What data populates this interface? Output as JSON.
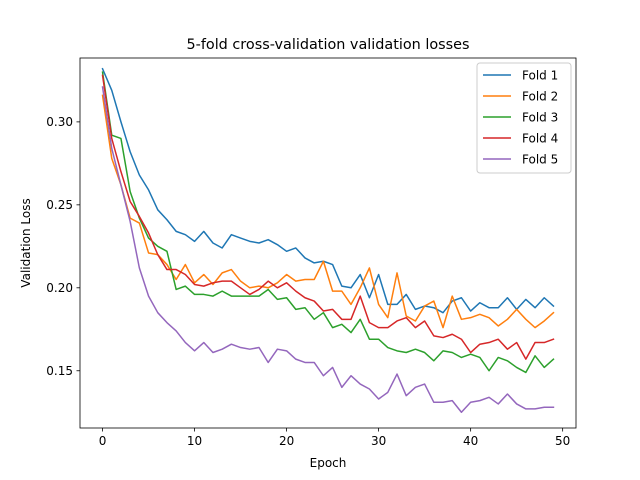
{
  "chart_data": {
    "type": "line",
    "title": "5-fold cross-validation validation losses",
    "xlabel": "Epoch",
    "ylabel": "Validation Loss",
    "xlim": [
      -2.45,
      51.45
    ],
    "ylim": [
      0.1155,
      0.3385
    ],
    "xticks": [
      0,
      10,
      20,
      30,
      40,
      50
    ],
    "xtick_labels": [
      "0",
      "10",
      "20",
      "30",
      "40",
      "50"
    ],
    "yticks": [
      0.15,
      0.2,
      0.25,
      0.3
    ],
    "ytick_labels": [
      "0.15",
      "0.20",
      "0.25",
      "0.30"
    ],
    "grid": false,
    "legend_position": "top-right",
    "x": [
      0,
      1,
      2,
      3,
      4,
      5,
      6,
      7,
      8,
      9,
      10,
      11,
      12,
      13,
      14,
      15,
      16,
      17,
      18,
      19,
      20,
      21,
      22,
      23,
      24,
      25,
      26,
      27,
      28,
      29,
      30,
      31,
      32,
      33,
      34,
      35,
      36,
      37,
      38,
      39,
      40,
      41,
      42,
      43,
      44,
      45,
      46,
      47,
      48,
      49
    ],
    "series": [
      {
        "name": "Fold 1",
        "color": "#1f77b4",
        "values": [
          0.332,
          0.319,
          0.3,
          0.282,
          0.268,
          0.259,
          0.247,
          0.241,
          0.234,
          0.232,
          0.228,
          0.234,
          0.227,
          0.224,
          0.232,
          0.23,
          0.228,
          0.227,
          0.229,
          0.226,
          0.222,
          0.224,
          0.218,
          0.215,
          0.216,
          0.214,
          0.201,
          0.2,
          0.208,
          0.194,
          0.208,
          0.19,
          0.19,
          0.196,
          0.187,
          0.189,
          0.188,
          0.185,
          0.192,
          0.194,
          0.186,
          0.191,
          0.188,
          0.188,
          0.194,
          0.187,
          0.193,
          0.188,
          0.194,
          0.189
        ]
      },
      {
        "name": "Fold 2",
        "color": "#ff7f0e",
        "values": [
          0.316,
          0.278,
          0.262,
          0.242,
          0.239,
          0.221,
          0.22,
          0.214,
          0.205,
          0.214,
          0.203,
          0.208,
          0.202,
          0.209,
          0.211,
          0.204,
          0.2,
          0.201,
          0.2,
          0.203,
          0.208,
          0.204,
          0.205,
          0.205,
          0.216,
          0.198,
          0.198,
          0.19,
          0.2,
          0.212,
          0.19,
          0.182,
          0.209,
          0.183,
          0.18,
          0.189,
          0.192,
          0.176,
          0.195,
          0.181,
          0.182,
          0.184,
          0.182,
          0.177,
          0.181,
          0.187,
          0.181,
          0.176,
          0.18,
          0.185
        ]
      },
      {
        "name": "Fold 3",
        "color": "#2ca02c",
        "values": [
          0.33,
          0.292,
          0.29,
          0.258,
          0.242,
          0.23,
          0.225,
          0.222,
          0.199,
          0.201,
          0.196,
          0.196,
          0.195,
          0.198,
          0.195,
          0.195,
          0.195,
          0.195,
          0.199,
          0.193,
          0.194,
          0.187,
          0.188,
          0.181,
          0.185,
          0.176,
          0.178,
          0.173,
          0.181,
          0.169,
          0.169,
          0.164,
          0.162,
          0.161,
          0.163,
          0.161,
          0.156,
          0.162,
          0.161,
          0.158,
          0.16,
          0.158,
          0.15,
          0.158,
          0.156,
          0.152,
          0.149,
          0.159,
          0.152,
          0.157
        ]
      },
      {
        "name": "Fold 4",
        "color": "#d62728",
        "values": [
          0.328,
          0.29,
          0.27,
          0.252,
          0.243,
          0.233,
          0.22,
          0.211,
          0.211,
          0.208,
          0.202,
          0.201,
          0.203,
          0.204,
          0.204,
          0.2,
          0.196,
          0.199,
          0.204,
          0.2,
          0.203,
          0.198,
          0.194,
          0.192,
          0.186,
          0.187,
          0.181,
          0.181,
          0.195,
          0.179,
          0.176,
          0.176,
          0.18,
          0.182,
          0.176,
          0.18,
          0.171,
          0.17,
          0.172,
          0.169,
          0.161,
          0.166,
          0.167,
          0.169,
          0.163,
          0.167,
          0.157,
          0.167,
          0.167,
          0.169
        ]
      },
      {
        "name": "Fold 5",
        "color": "#9467bd",
        "values": [
          0.321,
          0.284,
          0.262,
          0.24,
          0.212,
          0.195,
          0.185,
          0.179,
          0.174,
          0.167,
          0.162,
          0.167,
          0.161,
          0.163,
          0.166,
          0.164,
          0.163,
          0.164,
          0.155,
          0.163,
          0.162,
          0.157,
          0.155,
          0.155,
          0.147,
          0.152,
          0.14,
          0.147,
          0.142,
          0.139,
          0.133,
          0.137,
          0.148,
          0.135,
          0.14,
          0.142,
          0.131,
          0.131,
          0.132,
          0.125,
          0.131,
          0.132,
          0.134,
          0.13,
          0.136,
          0.13,
          0.127,
          0.127,
          0.128,
          0.128
        ]
      }
    ]
  }
}
